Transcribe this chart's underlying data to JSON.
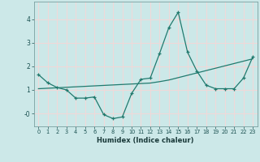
{
  "xlabel": "Humidex (Indice chaleur)",
  "x": [
    0,
    1,
    2,
    3,
    4,
    5,
    6,
    7,
    8,
    9,
    10,
    11,
    12,
    13,
    14,
    15,
    16,
    17,
    18,
    19,
    20,
    21,
    22,
    23
  ],
  "y_line": [
    1.65,
    1.3,
    1.1,
    1.0,
    0.65,
    0.65,
    0.7,
    -0.05,
    -0.22,
    -0.15,
    0.85,
    1.45,
    1.5,
    2.55,
    3.65,
    4.3,
    2.6,
    1.8,
    1.2,
    1.05,
    1.05,
    1.05,
    1.5,
    2.4
  ],
  "y_trend": [
    1.05,
    1.07,
    1.09,
    1.11,
    1.13,
    1.15,
    1.17,
    1.19,
    1.21,
    1.23,
    1.25,
    1.27,
    1.29,
    1.35,
    1.42,
    1.52,
    1.62,
    1.72,
    1.82,
    1.92,
    2.02,
    2.12,
    2.22,
    2.32
  ],
  "line_color": "#217a6e",
  "trend_color": "#217a6e",
  "bg_color": "#cce8e8",
  "grid_color": "#f0d8d8",
  "ylim": [
    -0.55,
    4.75
  ],
  "xlim": [
    -0.5,
    23.5
  ],
  "yticks": [
    0,
    1,
    2,
    3,
    4
  ],
  "ytick_labels": [
    "-0",
    "1",
    "2",
    "3",
    "4"
  ],
  "xticks": [
    0,
    1,
    2,
    3,
    4,
    5,
    6,
    7,
    8,
    9,
    10,
    11,
    12,
    13,
    14,
    15,
    16,
    17,
    18,
    19,
    20,
    21,
    22,
    23
  ]
}
